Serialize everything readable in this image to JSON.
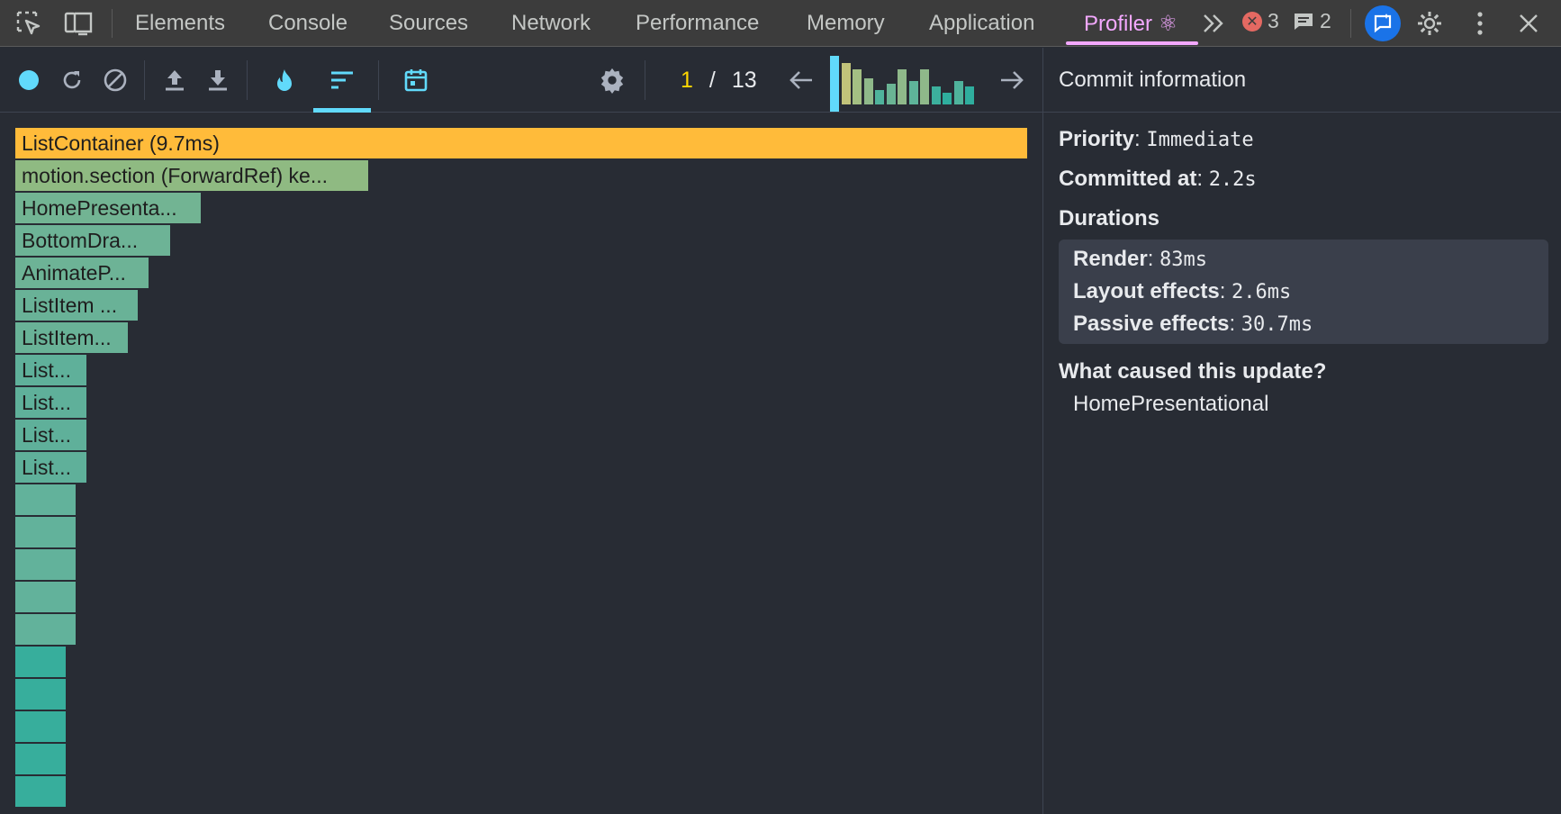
{
  "devtools": {
    "tabs": [
      "Elements",
      "Console",
      "Sources",
      "Network",
      "Performance",
      "Memory",
      "Application",
      "Profiler ⚛"
    ],
    "active_tab": "Profiler ⚛",
    "more_tabs_icon": "double-chevron-right-icon",
    "errors_count": "3",
    "messages_count": "2",
    "colors": {
      "active_tab": "#f3a8ff",
      "error": "#e46962"
    }
  },
  "profiler_toolbar": {
    "icons": [
      "record-icon",
      "reload-icon",
      "clear-icon",
      "upload-icon",
      "download-icon",
      "flame-icon",
      "ranked-icon",
      "timeline-icon",
      "settings-icon"
    ],
    "commit_current": "1",
    "commit_separator": "/",
    "commit_total": "13",
    "commit_durations_ms": [
      83,
      70,
      60,
      45,
      25,
      35,
      60,
      40,
      60,
      30,
      20,
      40,
      30
    ],
    "colors": {
      "accent": "#61dafb",
      "selected_counter": "#ffd700"
    }
  },
  "commit_info": {
    "title": "Commit information",
    "priority_label": "Priority",
    "priority_value": "Immediate",
    "committed_label": "Committed at",
    "committed_value": "2.2s",
    "durations_label": "Durations",
    "render_label": "Render",
    "render_value": "83ms",
    "layout_label": "Layout effects",
    "layout_value": "2.6ms",
    "passive_label": "Passive effects",
    "passive_value": "30.7ms",
    "cause_label": "What caused this update?",
    "cause_value": "HomePresentational"
  },
  "ranked_chart": {
    "nodes": [
      {
        "label": "ListContainer (9.7ms)",
        "color": "#ffbb3a"
      },
      {
        "label": "motion.section (ForwardRef) ke...",
        "color": "#8fba82"
      },
      {
        "label": "HomePresenta...",
        "color": "#72b493"
      },
      {
        "label": "BottomDra...",
        "color": "#6db396"
      },
      {
        "label": "AnimateP...",
        "color": "#6db396"
      },
      {
        "label": "ListItem ...",
        "color": "#69b297"
      },
      {
        "label": "ListItem...",
        "color": "#69b297"
      },
      {
        "label": "List...",
        "color": "#5fb09a"
      },
      {
        "label": "List...",
        "color": "#5fb09a"
      },
      {
        "label": "List...",
        "color": "#5fb09a"
      },
      {
        "label": "List...",
        "color": "#5fb09a"
      },
      {
        "label": "",
        "color": "#62b29b"
      },
      {
        "label": "",
        "color": "#62b29b"
      },
      {
        "label": "",
        "color": "#62b29b"
      },
      {
        "label": "",
        "color": "#62b29b"
      },
      {
        "label": "",
        "color": "#62b29b"
      },
      {
        "label": "",
        "color": "#37ae9c"
      },
      {
        "label": "",
        "color": "#37ae9c"
      },
      {
        "label": "",
        "color": "#37ae9c"
      },
      {
        "label": "",
        "color": "#37ae9c"
      },
      {
        "label": "",
        "color": "#37ae9c"
      }
    ]
  }
}
